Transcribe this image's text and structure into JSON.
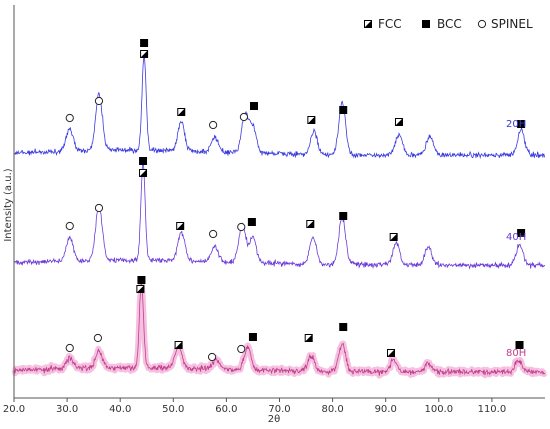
{
  "chart_data": {
    "type": "line",
    "title": "",
    "xlabel": "2θ",
    "ylabel": "Intensity (a.u.)",
    "xlim": [
      20,
      120
    ],
    "xticks": [
      "20.0",
      "30.0",
      "40.0",
      "50.0",
      "60.0",
      "70.0",
      "80.0",
      "90.0",
      "100.0",
      "110.0"
    ],
    "xtick_values": [
      20,
      30,
      40,
      50,
      60,
      70,
      80,
      90,
      100,
      110
    ],
    "grid": false,
    "legend": {
      "position": "top-right",
      "items": [
        {
          "name": "FCC",
          "marker": "half-filled-square"
        },
        {
          "name": "BCC",
          "marker": "filled-square"
        },
        {
          "name": "SPINEL",
          "marker": "open-circle"
        }
      ]
    },
    "series": [
      {
        "name": "20H",
        "color": "#3a3adf",
        "peaks": [
          [
            30.5,
            0.24
          ],
          [
            36.0,
            0.6
          ],
          [
            44.5,
            1.0
          ],
          [
            51.5,
            0.3
          ],
          [
            57.8,
            0.15
          ],
          [
            63.5,
            0.4
          ],
          [
            65.0,
            0.28
          ],
          [
            76.5,
            0.24
          ],
          [
            81.8,
            0.55
          ],
          [
            92.5,
            0.22
          ],
          [
            98.3,
            0.2
          ],
          [
            115.5,
            0.26
          ]
        ],
        "markers": [
          {
            "type": "SPINEL",
            "x": 30.5
          },
          {
            "type": "SPINEL",
            "x": 36.0
          },
          {
            "type": "BCC",
            "x": 44.5
          },
          {
            "type": "FCC",
            "x": 44.5
          },
          {
            "type": "FCC",
            "x": 51.5
          },
          {
            "type": "SPINEL",
            "x": 57.5
          },
          {
            "type": "SPINEL",
            "x": 63.3
          },
          {
            "type": "BCC",
            "x": 65.2
          },
          {
            "type": "FCC",
            "x": 76.0
          },
          {
            "type": "BCC",
            "x": 82.0
          },
          {
            "type": "FCC",
            "x": 92.5
          },
          {
            "type": "BCC",
            "x": 115.5
          }
        ]
      },
      {
        "name": "40H",
        "color": "#6a3ad8",
        "peaks": [
          [
            30.5,
            0.24
          ],
          [
            36.0,
            0.55
          ],
          [
            44.3,
            1.0
          ],
          [
            51.5,
            0.3
          ],
          [
            57.8,
            0.15
          ],
          [
            63.0,
            0.4
          ],
          [
            65.0,
            0.27
          ],
          [
            76.3,
            0.27
          ],
          [
            81.8,
            0.48
          ],
          [
            92.0,
            0.22
          ],
          [
            98.0,
            0.18
          ],
          [
            115.2,
            0.2
          ]
        ],
        "markers": [
          {
            "type": "SPINEL",
            "x": 30.5
          },
          {
            "type": "SPINEL",
            "x": 36.0
          },
          {
            "type": "BCC",
            "x": 44.3
          },
          {
            "type": "FCC",
            "x": 44.3
          },
          {
            "type": "FCC",
            "x": 51.3
          },
          {
            "type": "SPINEL",
            "x": 57.5
          },
          {
            "type": "SPINEL",
            "x": 62.8
          },
          {
            "type": "BCC",
            "x": 64.8
          },
          {
            "type": "FCC",
            "x": 75.8
          },
          {
            "type": "BCC",
            "x": 82.0
          },
          {
            "type": "FCC",
            "x": 91.5
          },
          {
            "type": "BCC",
            "x": 115.5
          }
        ]
      },
      {
        "name": "80H",
        "color": "#c0408c",
        "peaks": [
          [
            30.5,
            0.12
          ],
          [
            36.0,
            0.2
          ],
          [
            44.0,
            1.0
          ],
          [
            51.0,
            0.27
          ],
          [
            58.0,
            0.12
          ],
          [
            64.0,
            0.27
          ],
          [
            76.0,
            0.18
          ],
          [
            81.8,
            0.33
          ],
          [
            91.5,
            0.14
          ],
          [
            98.0,
            0.1
          ],
          [
            115.0,
            0.14
          ]
        ],
        "markers": [
          {
            "type": "SPINEL",
            "x": 30.5
          },
          {
            "type": "SPINEL",
            "x": 35.8
          },
          {
            "type": "BCC",
            "x": 44.0
          },
          {
            "type": "FCC",
            "x": 43.8
          },
          {
            "type": "FCC",
            "x": 51.0
          },
          {
            "type": "SPINEL",
            "x": 57.3
          },
          {
            "type": "SPINEL",
            "x": 62.8
          },
          {
            "type": "BCC",
            "x": 65.0
          },
          {
            "type": "FCC",
            "x": 75.5
          },
          {
            "type": "BCC",
            "x": 82.0
          },
          {
            "type": "FCC",
            "x": 91.0
          },
          {
            "type": "BCC",
            "x": 115.2
          }
        ]
      }
    ]
  }
}
